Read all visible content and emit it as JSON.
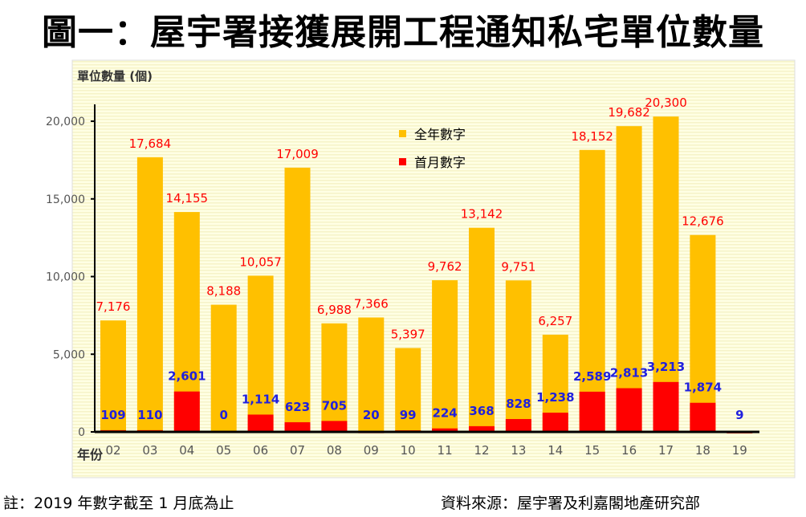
{
  "title": "圖一：屋宇署接獲展開工程通知私宅單位數量",
  "footnote": "註：2019 年數字截至 1 月底為止",
  "source": "資料來源：屋宇署及利嘉閣地產研究部",
  "chart_data": {
    "type": "bar",
    "title": "圖一：屋宇署接獲展開工程通知私宅單位數量",
    "ylabel": "單位數量 (個)",
    "xlabel": "年份",
    "ylim": [
      0,
      20000
    ],
    "yticks": [
      0,
      5000,
      10000,
      15000,
      20000
    ],
    "ytick_labels": [
      "0",
      "5,000",
      "10,000",
      "15,000",
      "20,000"
    ],
    "legend_position": "top-center",
    "categories": [
      "02",
      "03",
      "04",
      "05",
      "06",
      "07",
      "08",
      "09",
      "10",
      "11",
      "12",
      "13",
      "14",
      "15",
      "16",
      "17",
      "18",
      "19"
    ],
    "series": [
      {
        "name": "全年數字",
        "color": "#FFC000",
        "label_color": "#FF0000",
        "values": [
          7176,
          17684,
          14155,
          8188,
          10057,
          17009,
          6988,
          7366,
          5397,
          9762,
          13142,
          9751,
          6257,
          18152,
          19682,
          20300,
          12676,
          9
        ],
        "labels": [
          "7,176",
          "17,684",
          "14,155",
          "8,188",
          "10,057",
          "17,009",
          "6,988",
          "7,366",
          "5,397",
          "9,762",
          "13,142",
          "9,751",
          "6,257",
          "18,152",
          "19,682",
          "20,300",
          "12,676",
          ""
        ]
      },
      {
        "name": "首月數字",
        "color": "#FF0000",
        "label_color": "#2020DD",
        "values": [
          109,
          110,
          2601,
          0,
          1114,
          623,
          705,
          20,
          99,
          224,
          368,
          828,
          1238,
          2589,
          2813,
          3213,
          1874,
          9
        ],
        "labels": [
          "109",
          "110",
          "2,601",
          "0",
          "1,114",
          "623",
          "705",
          "20",
          "99",
          "224",
          "368",
          "828",
          "1,238",
          "2,589",
          "2,813",
          "3,213",
          "1,874",
          "9"
        ]
      }
    ]
  }
}
